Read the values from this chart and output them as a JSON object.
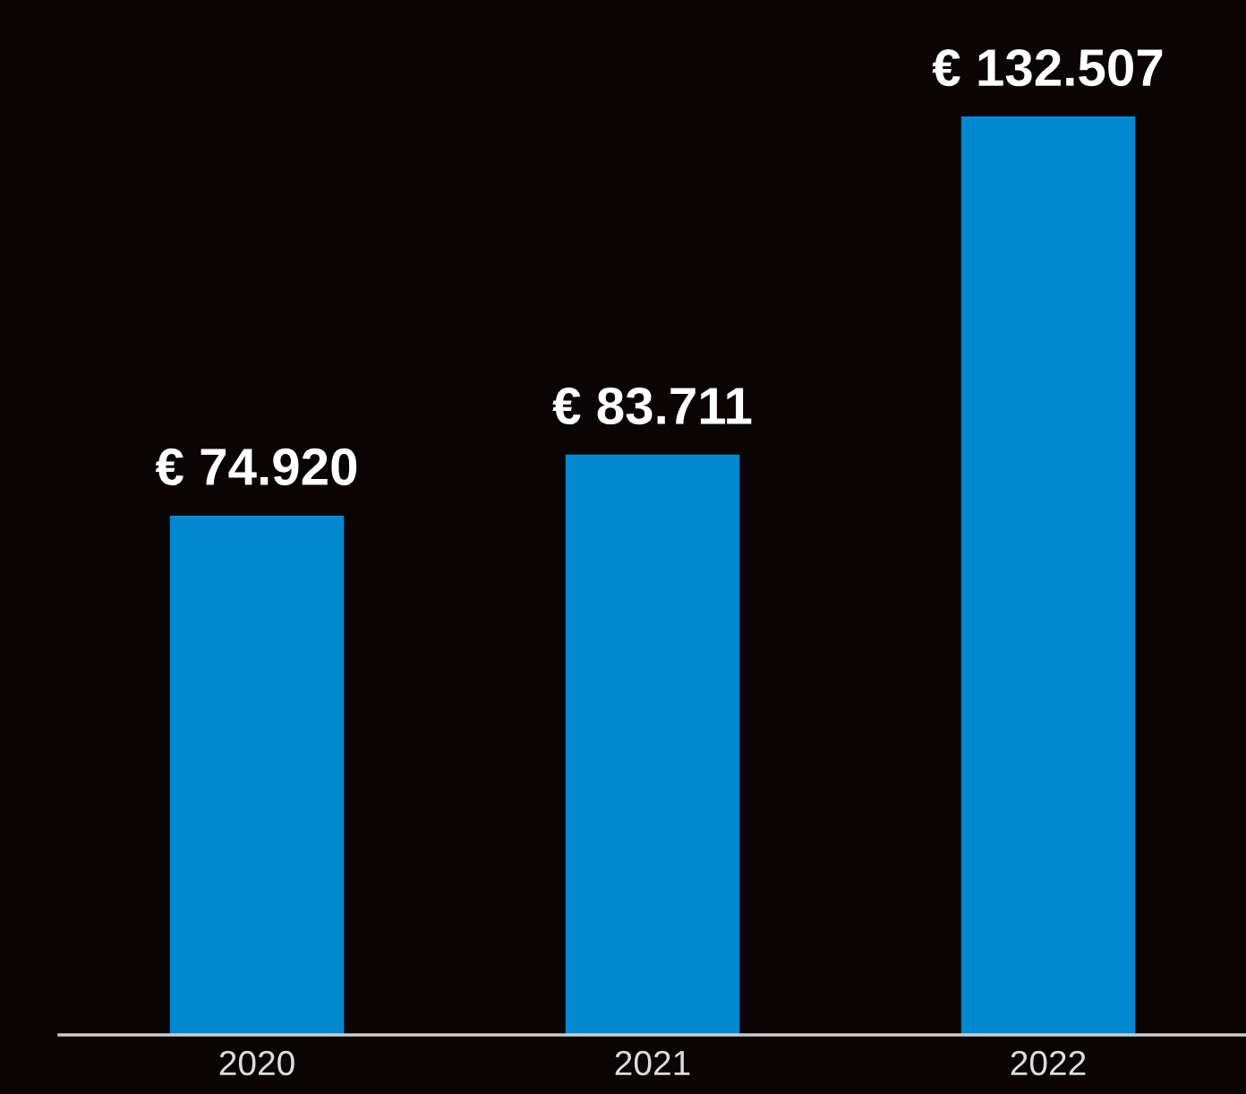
{
  "chart_data": {
    "type": "bar",
    "categories": [
      "2020",
      "2021",
      "2022"
    ],
    "values": [
      74920,
      83711,
      132507
    ],
    "value_labels": [
      "€ 74.920",
      "€ 83.711",
      "€ 132.507"
    ],
    "color": "#0088d1",
    "ylim": [
      0,
      149300
    ],
    "tick_labels": "x",
    "grid": false,
    "legend": false
  }
}
